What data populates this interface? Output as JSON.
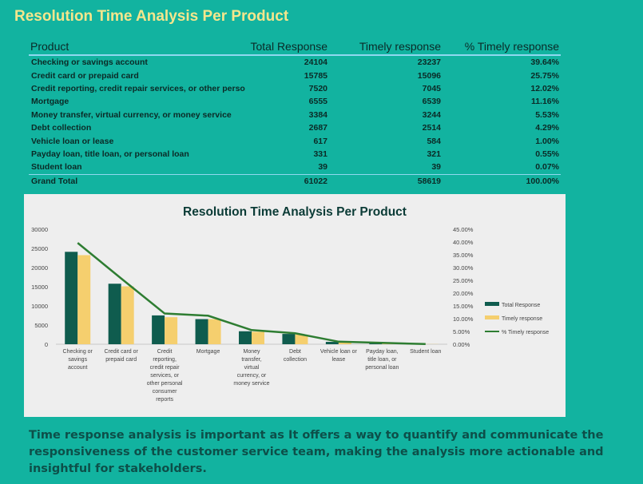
{
  "page_title": "Resolution Time Analysis Per Product",
  "table": {
    "headers": [
      "Product",
      "Total Response",
      "Timely response",
      "% Timely response"
    ],
    "rows": [
      {
        "product": "Checking or savings account",
        "total": "24104",
        "timely": "23237",
        "pct": "39.64%"
      },
      {
        "product": "Credit card or prepaid card",
        "total": "15785",
        "timely": "15096",
        "pct": "25.75%"
      },
      {
        "product": "Credit reporting, credit repair services, or other perso",
        "total": "7520",
        "timely": "7045",
        "pct": "12.02%"
      },
      {
        "product": "Mortgage",
        "total": "6555",
        "timely": "6539",
        "pct": "11.16%"
      },
      {
        "product": "Money transfer, virtual currency, or money service",
        "total": "3384",
        "timely": "3244",
        "pct": "5.53%"
      },
      {
        "product": "Debt collection",
        "total": "2687",
        "timely": "2514",
        "pct": "4.29%"
      },
      {
        "product": "Vehicle loan or lease",
        "total": "617",
        "timely": "584",
        "pct": "1.00%"
      },
      {
        "product": "Payday loan, title loan, or personal loan",
        "total": "331",
        "timely": "321",
        "pct": "0.55%"
      },
      {
        "product": "Student loan",
        "total": "39",
        "timely": "39",
        "pct": "0.07%"
      }
    ],
    "grand_total": {
      "label": "Grand Total",
      "total": "61022",
      "timely": "58619",
      "pct": "100.00%"
    }
  },
  "chart_data": {
    "type": "bar",
    "title": "Resolution Time Analysis Per Product",
    "categories": [
      [
        "Checking or",
        "savings",
        "account"
      ],
      [
        "Credit card or",
        "prepaid card"
      ],
      [
        "Credit",
        "reporting,",
        "credit repair",
        "services, or",
        "other personal",
        "consumer",
        "reports"
      ],
      [
        "Mortgage"
      ],
      [
        "Money",
        "transfer,",
        "virtual",
        "currency, or",
        "money service"
      ],
      [
        "Debt",
        "collection"
      ],
      [
        "Vehicle loan or",
        "lease"
      ],
      [
        "Payday loan,",
        "title loan, or",
        "personal loan"
      ],
      [
        "Student loan"
      ]
    ],
    "series": [
      {
        "name": "Total Response",
        "type": "bar",
        "axis": "left",
        "color": "#0f5c4e",
        "values": [
          24104,
          15785,
          7520,
          6555,
          3384,
          2687,
          617,
          331,
          39
        ]
      },
      {
        "name": "Timely response",
        "type": "bar",
        "axis": "left",
        "color": "#f5cf6e",
        "values": [
          23237,
          15096,
          7045,
          6539,
          3244,
          2514,
          584,
          321,
          39
        ]
      },
      {
        "name": "% Timely response",
        "type": "line",
        "axis": "right",
        "color": "#2e7d32",
        "values": [
          39.64,
          25.75,
          12.02,
          11.16,
          5.53,
          4.29,
          1.0,
          0.55,
          0.07
        ]
      }
    ],
    "y_left": {
      "min": 0,
      "max": 30000,
      "ticks": [
        "30000",
        "25000",
        "20000",
        "15000",
        "10000",
        "5000",
        "0"
      ]
    },
    "y_right": {
      "min": 0,
      "max": 45,
      "ticks": [
        "45.00%",
        "40.00%",
        "35.00%",
        "30.00%",
        "25.00%",
        "20.00%",
        "15.00%",
        "10.00%",
        "5.00%",
        "0.00%"
      ]
    },
    "legend_position": "right",
    "grid": false
  },
  "footer": "Time response analysis is important  as It offers a way to quantify and communicate the responsiveness of the customer service team, making the analysis more actionable and insightful for stakeholders."
}
